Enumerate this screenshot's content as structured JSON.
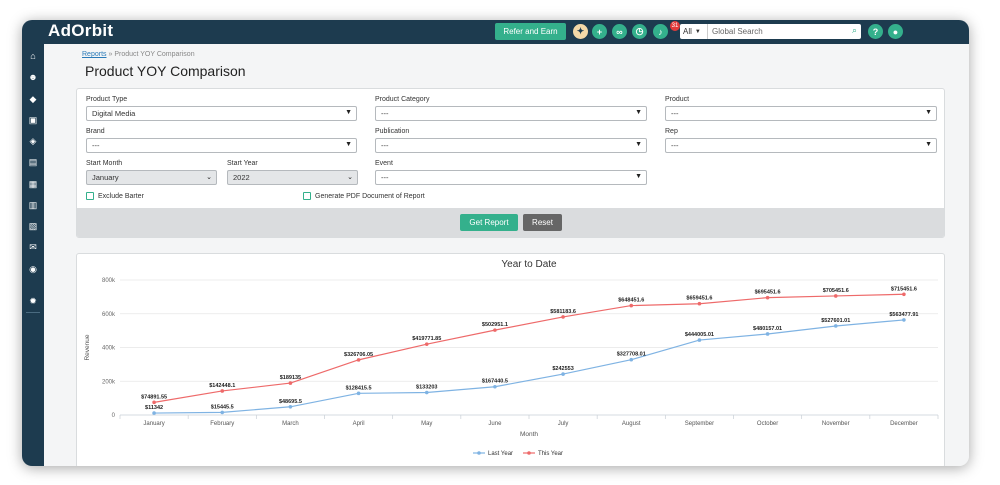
{
  "app": {
    "logo": "AdOrbit"
  },
  "topbar": {
    "refer_label": "Refer and Earn",
    "notif_count": "31",
    "search_scope": "All",
    "search_placeholder": "Global Search"
  },
  "breadcrumb": {
    "link": "Reports",
    "sep": " » ",
    "current": "Product YOY Comparison"
  },
  "page_title": "Product YOY Comparison",
  "filters": {
    "product_type": {
      "label": "Product Type",
      "value": "Digital Media"
    },
    "product_category": {
      "label": "Product Category",
      "value": "---"
    },
    "product": {
      "label": "Product",
      "value": "---"
    },
    "brand": {
      "label": "Brand",
      "value": "---"
    },
    "publication": {
      "label": "Publication",
      "value": "---"
    },
    "rep": {
      "label": "Rep",
      "value": "---"
    },
    "start_month": {
      "label": "Start Month",
      "value": "January"
    },
    "start_year": {
      "label": "Start Year",
      "value": "2022"
    },
    "event": {
      "label": "Event",
      "value": "---"
    },
    "exclude_barter": "Exclude Barter",
    "generate_pdf": "Generate PDF Document of Report",
    "get_report": "Get Report",
    "reset": "Reset"
  },
  "chart_data": {
    "type": "line",
    "title": "Year to Date",
    "xlabel": "Month",
    "ylabel": "Revenue",
    "ylim": [
      0,
      800000
    ],
    "yticks": [
      "0",
      "200k",
      "400k",
      "600k",
      "800k"
    ],
    "categories": [
      "January",
      "February",
      "March",
      "April",
      "May",
      "June",
      "July",
      "August",
      "September",
      "October",
      "November",
      "December"
    ],
    "legend_position": "bottom",
    "series": [
      {
        "name": "Last Year",
        "color": "#7fb3e3",
        "values": [
          11342,
          15445.5,
          48695.5,
          128415.5,
          133203,
          167440.5,
          242553,
          327708.01,
          444005.01,
          480157.01,
          527601.01,
          563477.91
        ],
        "labels": [
          "$11342",
          "$15445.5",
          "$48695.5",
          "$128415.5",
          "$133203",
          "$167440.5",
          "$242553",
          "$327708.01",
          "$444005.01",
          "$480157.01",
          "$527601.01",
          "$563477.91"
        ]
      },
      {
        "name": "This Year",
        "color": "#ee6a6a",
        "values": [
          74891.55,
          142448.1,
          189135,
          326706.05,
          419771.85,
          502951.1,
          581183.6,
          648451.6,
          659451.6,
          695451.6,
          705451.6,
          715451.6
        ],
        "labels": [
          "$74891.55",
          "$142448.1",
          "$189135",
          "$326706.05",
          "$419771.85",
          "$502951.1",
          "$581183.6",
          "$648451.6",
          "$659451.6",
          "$695451.6",
          "$705451.6",
          "$715451.6"
        ]
      }
    ]
  }
}
